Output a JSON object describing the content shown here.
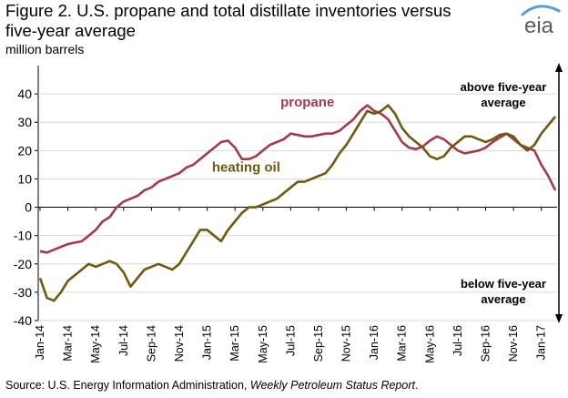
{
  "header": {
    "title_line1": "Figure 2. U.S. propane and total distillate inventories versus",
    "title_line2": "five-year average",
    "units": "million barrels"
  },
  "logo": {
    "text": "eia",
    "accent_color": "#5b9bd5"
  },
  "source": {
    "prefix": "Source: U.S. Energy Information Administration, ",
    "publication": "Weekly Petroleum Status Report",
    "suffix": "."
  },
  "chart_data": {
    "type": "line",
    "title": "Figure 2. U.S. propane and total distillate inventories versus five-year average",
    "ylabel": "million barrels",
    "ylim": [
      -40,
      50
    ],
    "yticks": [
      -40,
      -30,
      -20,
      -10,
      0,
      10,
      20,
      30,
      40
    ],
    "xlim": [
      0,
      37
    ],
    "x_unit": "months since Jan 2014",
    "x_tick_labels": [
      "Jan-14",
      "Mar-14",
      "May-14",
      "Jul-14",
      "Sep-14",
      "Nov-14",
      "Jan-15",
      "Mar-15",
      "May-15",
      "Jul-15",
      "Sep-15",
      "Nov-15",
      "Jan-16",
      "Mar-16",
      "May-16",
      "Jul-16",
      "Sep-16",
      "Nov-16",
      "Jan-17"
    ],
    "annotations": {
      "above": [
        "above five-year",
        "average"
      ],
      "below": [
        "below five-year",
        "average"
      ]
    },
    "series": [
      {
        "name": "propane",
        "color": "#a33a4a",
        "label_at": [
          19.2,
          35.5
        ],
        "points": [
          [
            0,
            -15.5
          ],
          [
            0.5,
            -16
          ],
          [
            1,
            -15
          ],
          [
            1.5,
            -14
          ],
          [
            2,
            -13
          ],
          [
            2.5,
            -12.5
          ],
          [
            3,
            -12
          ],
          [
            3.5,
            -10
          ],
          [
            4,
            -8
          ],
          [
            4.5,
            -5
          ],
          [
            5,
            -3.5
          ],
          [
            5.5,
            0
          ],
          [
            6,
            2
          ],
          [
            6.5,
            3
          ],
          [
            7,
            4
          ],
          [
            7.5,
            6
          ],
          [
            8,
            7
          ],
          [
            8.5,
            9
          ],
          [
            9,
            10
          ],
          [
            9.5,
            11
          ],
          [
            10,
            12
          ],
          [
            10.5,
            14
          ],
          [
            11,
            15
          ],
          [
            11.5,
            17
          ],
          [
            12,
            19
          ],
          [
            12.5,
            21
          ],
          [
            13,
            23
          ],
          [
            13.5,
            23.5
          ],
          [
            14,
            21
          ],
          [
            14.5,
            17
          ],
          [
            15,
            17
          ],
          [
            15.5,
            18
          ],
          [
            16,
            20
          ],
          [
            16.5,
            22
          ],
          [
            17,
            23
          ],
          [
            17.5,
            24
          ],
          [
            18,
            26
          ],
          [
            18.5,
            25.5
          ],
          [
            19,
            25
          ],
          [
            19.5,
            25
          ],
          [
            20,
            25.5
          ],
          [
            20.5,
            26
          ],
          [
            21,
            26
          ],
          [
            21.5,
            27
          ],
          [
            22,
            29
          ],
          [
            22.5,
            31
          ],
          [
            23,
            34
          ],
          [
            23.5,
            36
          ],
          [
            24,
            34
          ],
          [
            24.5,
            33
          ],
          [
            25,
            31
          ],
          [
            25.5,
            27
          ],
          [
            26,
            23
          ],
          [
            26.5,
            21
          ],
          [
            27,
            20.5
          ],
          [
            27.5,
            21.5
          ],
          [
            28,
            23.5
          ],
          [
            28.5,
            25
          ],
          [
            29,
            24
          ],
          [
            29.5,
            22
          ],
          [
            30,
            20
          ],
          [
            30.5,
            19
          ],
          [
            31,
            19.5
          ],
          [
            31.5,
            20
          ],
          [
            32,
            21
          ],
          [
            32.5,
            23
          ],
          [
            33,
            24.5
          ],
          [
            33.5,
            26
          ],
          [
            34,
            24
          ],
          [
            34.5,
            22
          ],
          [
            35,
            21
          ],
          [
            35.5,
            20
          ],
          [
            36,
            15
          ],
          [
            36.5,
            11
          ],
          [
            37,
            6
          ]
        ]
      },
      {
        "name": "heating oil",
        "color": "#6b5a10",
        "label_at": [
          14.8,
          12.5
        ],
        "points": [
          [
            0,
            -25
          ],
          [
            0.5,
            -32
          ],
          [
            1,
            -33
          ],
          [
            1.5,
            -30
          ],
          [
            2,
            -26
          ],
          [
            2.5,
            -24
          ],
          [
            3,
            -22
          ],
          [
            3.5,
            -20
          ],
          [
            4,
            -21
          ],
          [
            4.5,
            -20
          ],
          [
            5,
            -19
          ],
          [
            5.5,
            -20
          ],
          [
            6,
            -23
          ],
          [
            6.5,
            -28
          ],
          [
            7,
            -25
          ],
          [
            7.5,
            -22
          ],
          [
            8,
            -21
          ],
          [
            8.5,
            -20
          ],
          [
            9,
            -21
          ],
          [
            9.5,
            -22
          ],
          [
            10,
            -20
          ],
          [
            10.5,
            -16
          ],
          [
            11,
            -12
          ],
          [
            11.5,
            -8
          ],
          [
            12,
            -8
          ],
          [
            12.5,
            -10
          ],
          [
            13,
            -12
          ],
          [
            13.5,
            -8
          ],
          [
            14,
            -5
          ],
          [
            14.5,
            -2
          ],
          [
            15,
            0
          ],
          [
            15.5,
            0
          ],
          [
            16,
            1
          ],
          [
            16.5,
            2
          ],
          [
            17,
            3
          ],
          [
            17.5,
            5
          ],
          [
            18,
            7
          ],
          [
            18.5,
            9
          ],
          [
            19,
            9
          ],
          [
            19.5,
            10
          ],
          [
            20,
            11
          ],
          [
            20.5,
            12
          ],
          [
            21,
            15
          ],
          [
            21.5,
            19
          ],
          [
            22,
            22
          ],
          [
            22.5,
            26
          ],
          [
            23,
            30
          ],
          [
            23.5,
            34
          ],
          [
            24,
            33
          ],
          [
            24.5,
            34
          ],
          [
            25,
            36
          ],
          [
            25.5,
            33
          ],
          [
            26,
            28
          ],
          [
            26.5,
            25
          ],
          [
            27,
            23
          ],
          [
            27.5,
            21
          ],
          [
            28,
            18
          ],
          [
            28.5,
            17
          ],
          [
            29,
            18
          ],
          [
            29.5,
            21
          ],
          [
            30,
            23
          ],
          [
            30.5,
            25
          ],
          [
            31,
            25
          ],
          [
            31.5,
            24
          ],
          [
            32,
            23
          ],
          [
            32.5,
            24
          ],
          [
            33,
            25.5
          ],
          [
            33.5,
            26
          ],
          [
            34,
            25
          ],
          [
            34.5,
            22
          ],
          [
            35,
            20
          ],
          [
            35.5,
            22
          ],
          [
            36,
            26
          ],
          [
            36.5,
            29
          ],
          [
            37,
            32
          ]
        ]
      }
    ]
  }
}
